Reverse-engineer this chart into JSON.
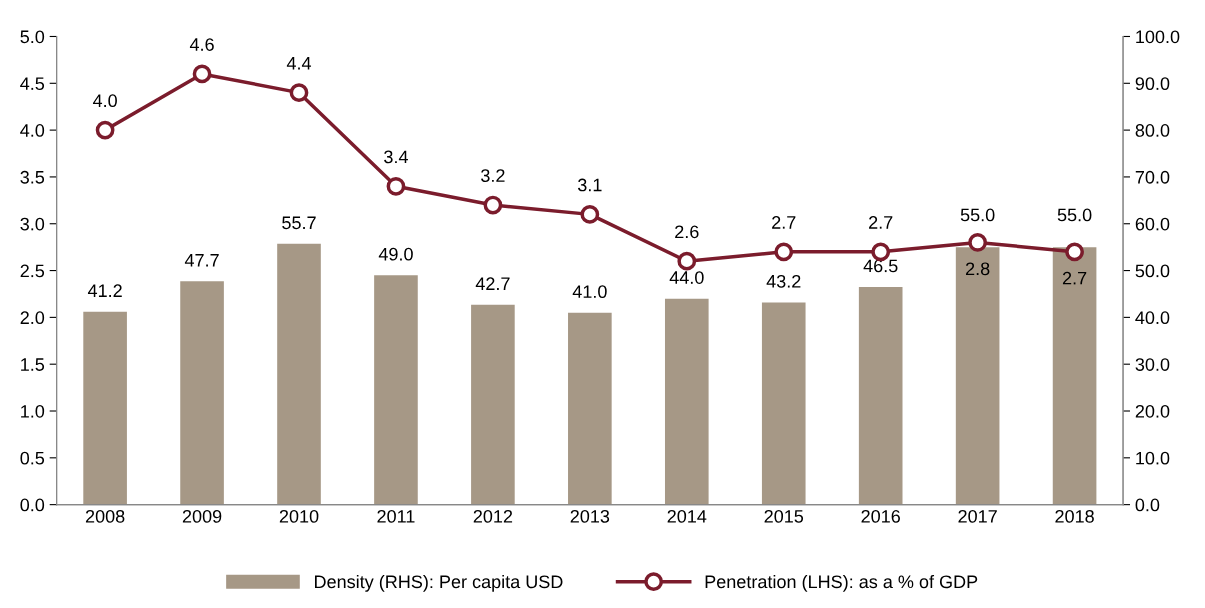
{
  "chart_data": {
    "type": "bar",
    "categories": [
      "2008",
      "2009",
      "2010",
      "2011",
      "2012",
      "2013",
      "2014",
      "2015",
      "2016",
      "2017",
      "2018"
    ],
    "series": [
      {
        "name": "Density (RHS): Per capita USD",
        "axis": "y2",
        "color": "#a69886",
        "values": [
          41.2,
          47.7,
          55.7,
          49.0,
          42.7,
          41.0,
          44.0,
          43.2,
          46.5,
          55.0,
          55.0
        ],
        "value_labels": [
          "41.2",
          "47.7",
          "55.7",
          "49.0",
          "42.7",
          "41.0",
          "44.0",
          "43.2",
          "46.5",
          "55.0",
          "55.0"
        ]
      },
      {
        "name": "Penetration (LHS): as a % of GDP",
        "type": "line",
        "color": "#7b1c2c",
        "marker": "circle",
        "values": [
          4.0,
          4.6,
          4.4,
          3.4,
          3.2,
          3.1,
          2.6,
          2.7,
          2.7,
          2.8,
          2.7
        ],
        "value_labels": [
          "4.0",
          "4.6",
          "4.4",
          "3.4",
          "3.2",
          "3.1",
          "2.6",
          "2.7",
          "2.7",
          "2.8",
          "2.7"
        ]
      }
    ],
    "ylim": [
      0,
      5
    ],
    "yticks": [
      {
        "value": 0,
        "label": "0.0"
      },
      {
        "value": 0.5,
        "label": "0.5"
      },
      {
        "value": 1,
        "label": "1.0"
      },
      {
        "value": 1.5,
        "label": "1.5"
      },
      {
        "value": 2,
        "label": "2.0"
      },
      {
        "value": 2.5,
        "label": "2.5"
      },
      {
        "value": 3,
        "label": "3.0"
      },
      {
        "value": 3.5,
        "label": "3.5"
      },
      {
        "value": 4,
        "label": "4.0"
      },
      {
        "value": 4.5,
        "label": "4.5"
      },
      {
        "value": 5,
        "label": "5.0"
      }
    ],
    "y2lim": [
      0,
      100
    ],
    "y2ticks": [
      {
        "value": 0,
        "label": "0.0"
      },
      {
        "value": 10,
        "label": "10.0"
      },
      {
        "value": 20,
        "label": "20.0"
      },
      {
        "value": 30,
        "label": "30.0"
      },
      {
        "value": 40,
        "label": "40.0"
      },
      {
        "value": 50,
        "label": "50.0"
      },
      {
        "value": 60,
        "label": "60.0"
      },
      {
        "value": 70,
        "label": "70.0"
      },
      {
        "value": 80,
        "label": "80.0"
      },
      {
        "value": 90,
        "label": "90.0"
      },
      {
        "value": 100,
        "label": "100.0"
      }
    ],
    "legend": "bottom",
    "grid": false
  }
}
